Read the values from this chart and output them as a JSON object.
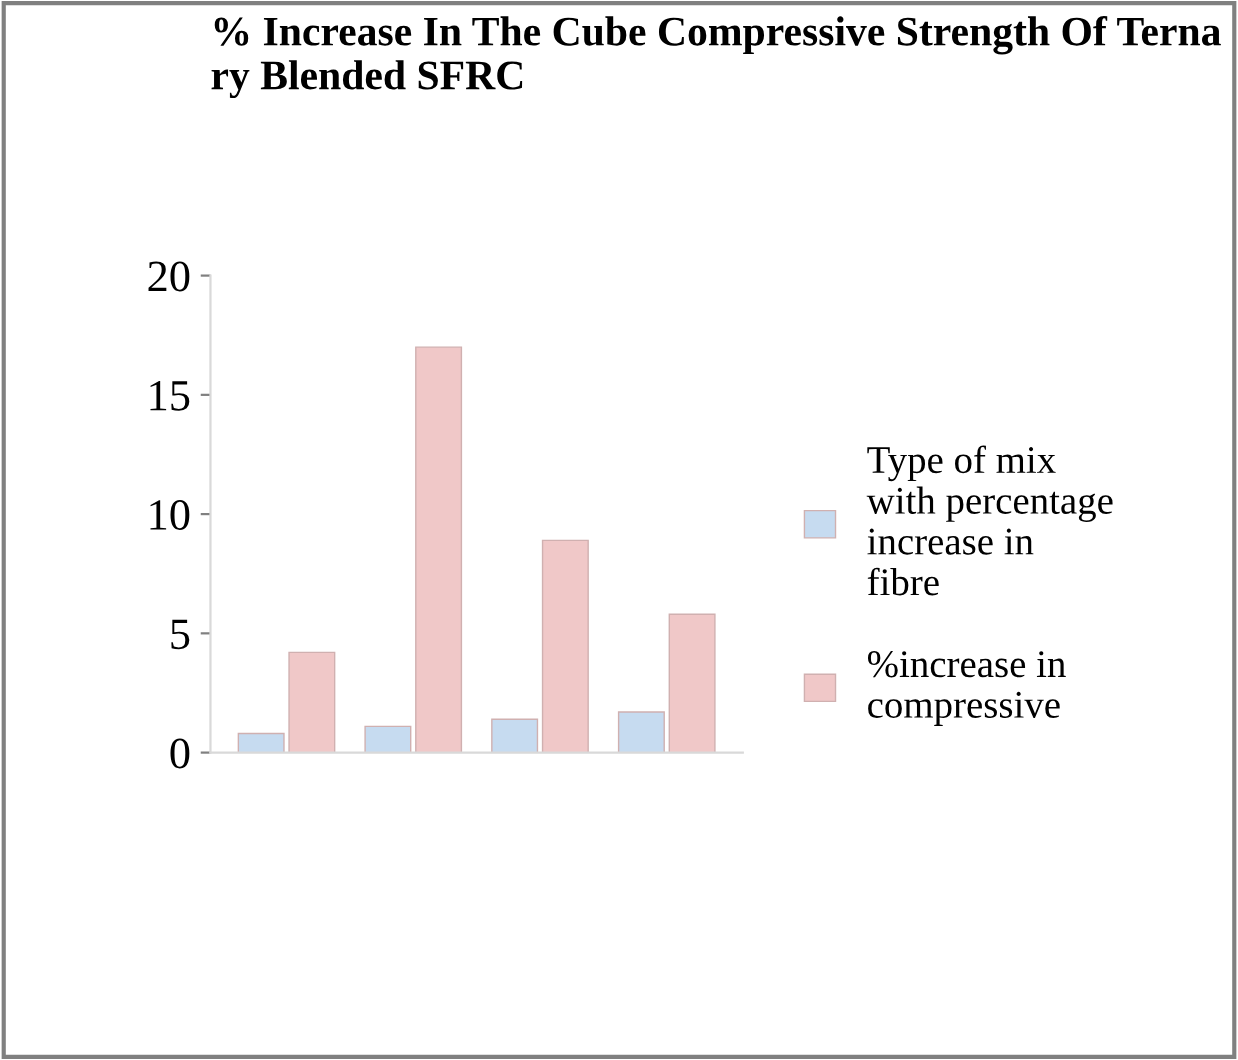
{
  "chart_data": {
    "type": "bar",
    "title": "% Increase In The Cube Compressive Strength Of Terna ry Blended SFRC",
    "categories": [
      null,
      null,
      null,
      null
    ],
    "series": [
      {
        "name": "Type of mix with percentage increase in fibre",
        "color": "#c6dbf0",
        "values": [
          0.8,
          1.1,
          1.4,
          1.7
        ]
      },
      {
        "name": "%increase in compressive",
        "color": "#f0c8c8",
        "values": [
          4.2,
          17.0,
          8.9,
          5.8
        ]
      }
    ],
    "ylim": [
      0,
      20
    ],
    "yticks": [
      0,
      5,
      10,
      15,
      20
    ],
    "grid": false,
    "legend": "right"
  }
}
